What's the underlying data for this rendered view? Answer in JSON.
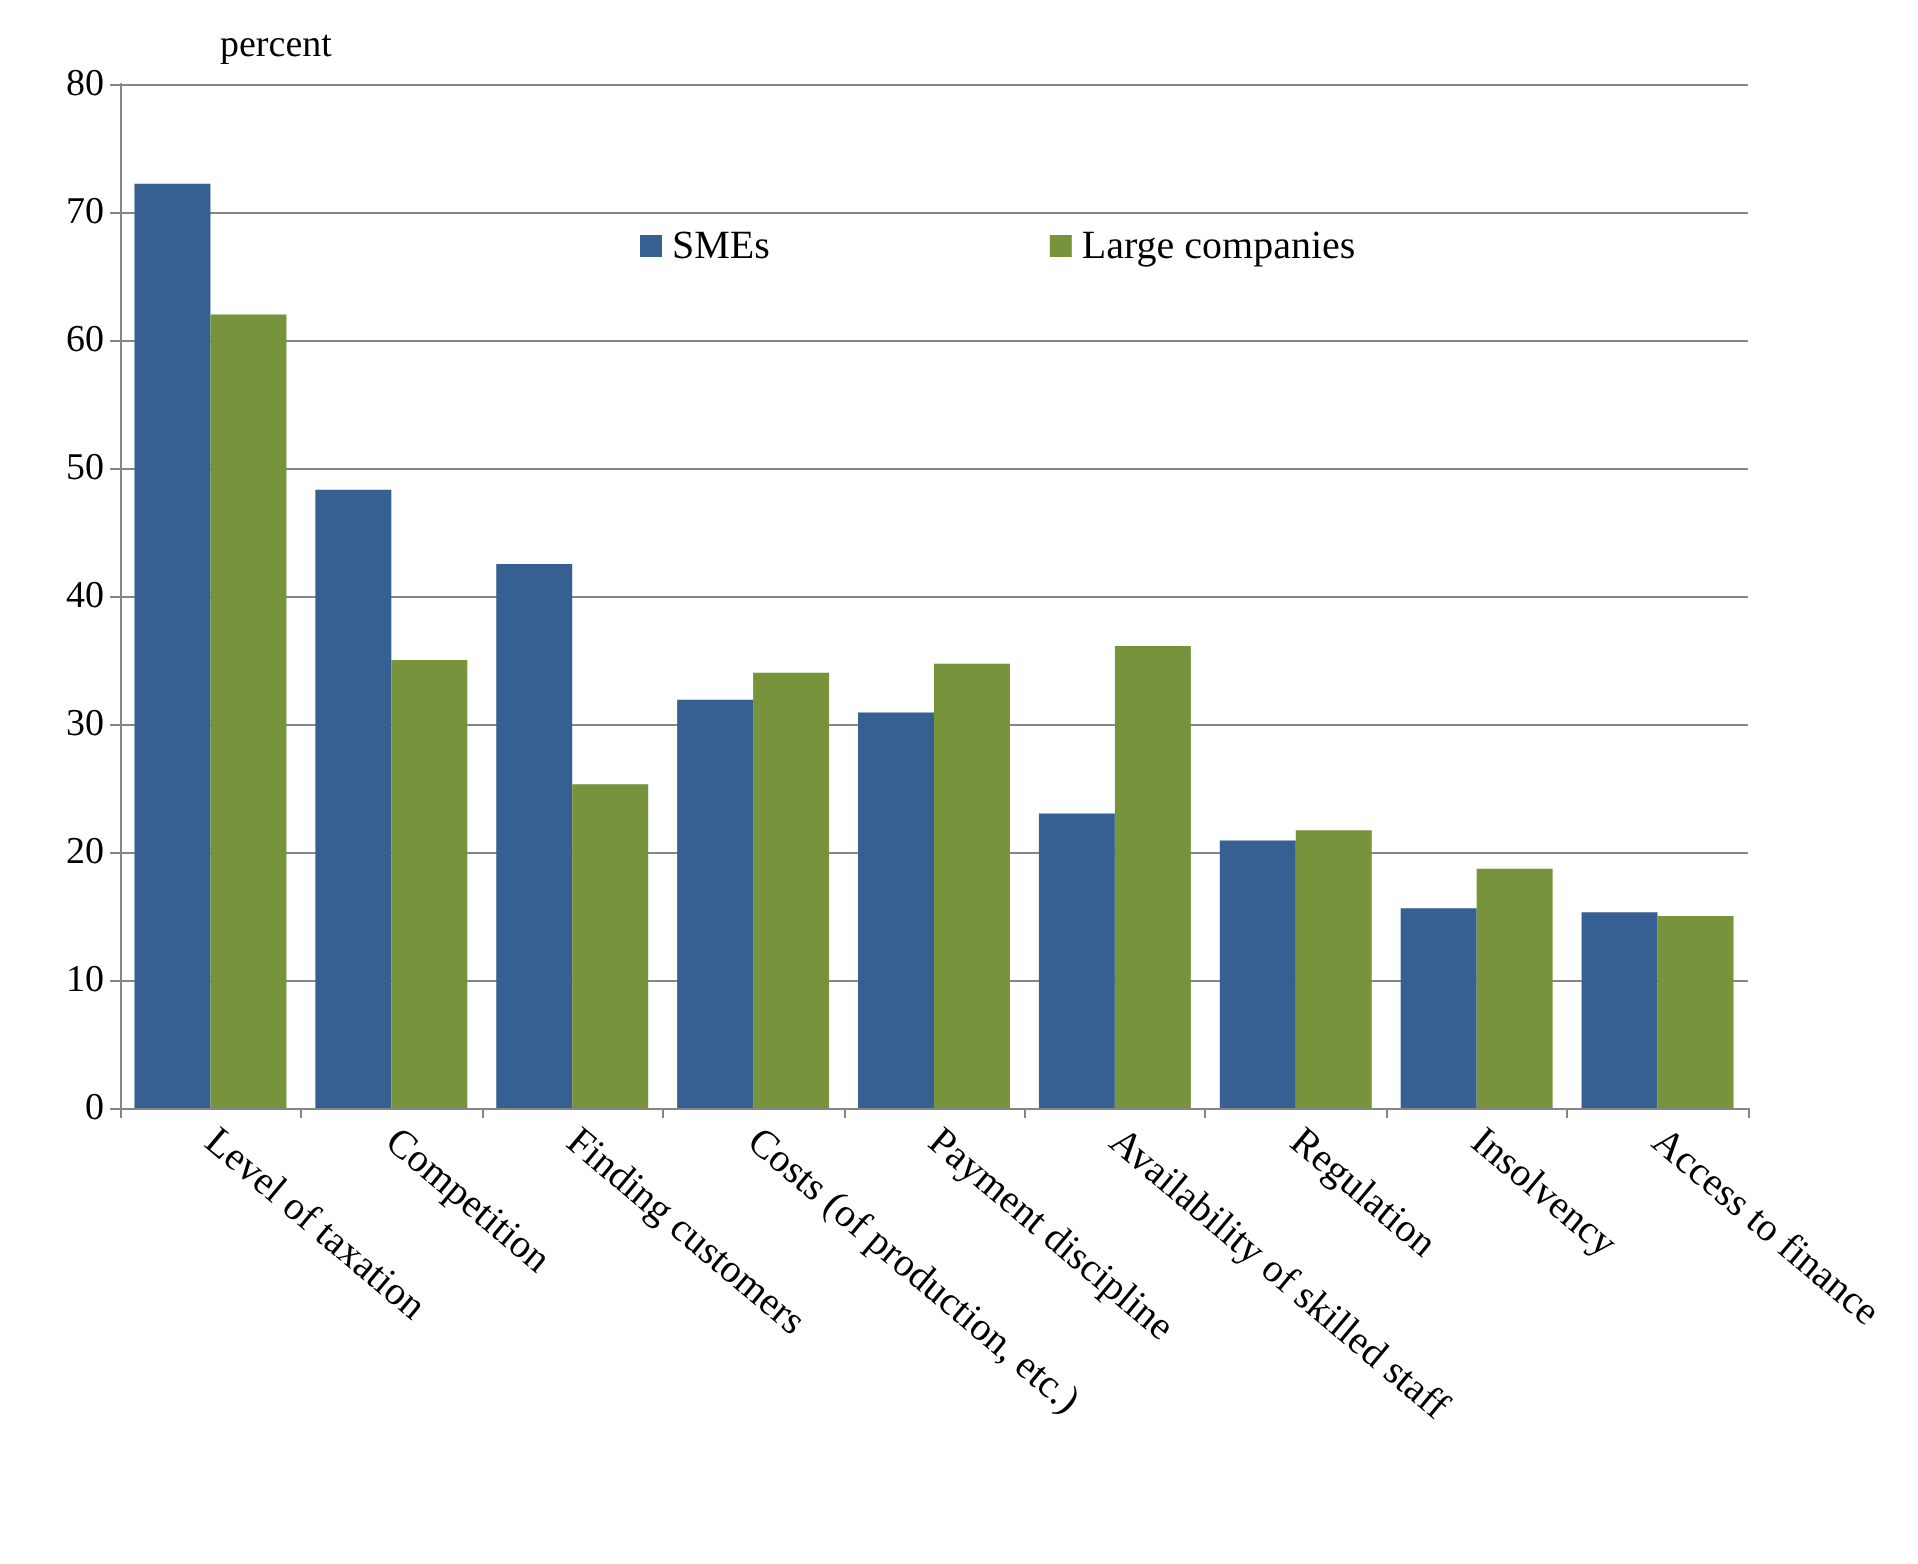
{
  "chart_data": {
    "type": "bar",
    "ylabel": "percent",
    "categories": [
      "Level of taxation",
      "Competition",
      "Finding customers",
      "Costs (of production, etc.)",
      "Payment discipline",
      "Availability of skilled staff",
      "Regulation",
      "Insolvency",
      "Access to finance"
    ],
    "series": [
      {
        "name": "SMEs",
        "color": "#376092",
        "values": [
          72.2,
          48.3,
          42.5,
          31.9,
          30.9,
          23,
          20.9,
          15.6,
          15.3
        ]
      },
      {
        "name": "Large companies",
        "color": "#77933c",
        "values": [
          62,
          35,
          25.3,
          34,
          34.7,
          36.1,
          21.7,
          18.7,
          15
        ]
      }
    ],
    "ylim": [
      0,
      80
    ],
    "yticks": [
      0,
      10,
      20,
      30,
      40,
      50,
      60,
      70,
      80
    ],
    "grid": "y",
    "legend": "top"
  }
}
